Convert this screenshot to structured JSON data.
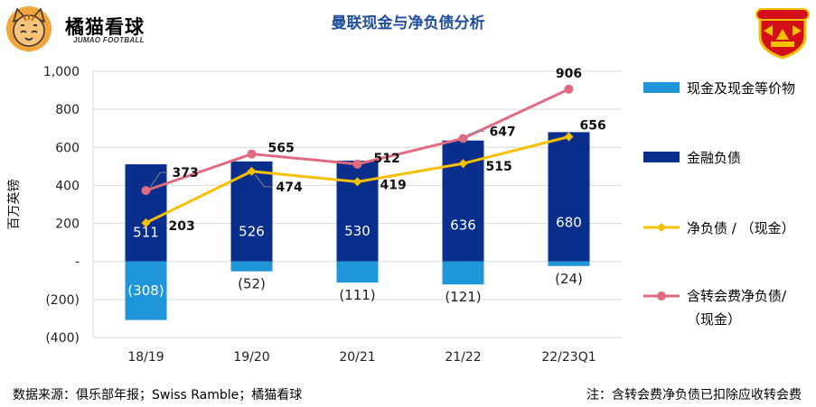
{
  "brand": {
    "name": "橘猫看球",
    "subtitle": "JUMAO FOOTBALL"
  },
  "title": "曼联现金与净负债分析",
  "footer": {
    "source": "数据来源：俱乐部年报；Swiss Ramble；橘猫看球",
    "note": "注：含转会费净负债已扣除应收转会费"
  },
  "colors": {
    "cash": "#1e96d7",
    "debt": "#0a2e8c",
    "net_debt": "#f5c000",
    "net_debt_incl": "#e06b80"
  },
  "chart_data": {
    "type": "bar",
    "categories": [
      "18/19",
      "19/20",
      "20/21",
      "21/22",
      "22/23Q1"
    ],
    "ylabel": "百万英镑",
    "ylim": [
      -400,
      1000
    ],
    "yticks": [
      {
        "v": 1000,
        "label": "1,000"
      },
      {
        "v": 800,
        "label": "800"
      },
      {
        "v": 600,
        "label": "600"
      },
      {
        "v": 400,
        "label": "400"
      },
      {
        "v": 200,
        "label": "200"
      },
      {
        "v": 0,
        "label": "-"
      },
      {
        "v": -200,
        "label": "(200)"
      },
      {
        "v": -400,
        "label": "(400)"
      }
    ],
    "grid": true,
    "legend_position": "right",
    "series": [
      {
        "name": "现金及现金等价物",
        "kind": "bar",
        "color": "#1e96d7",
        "values": [
          -308,
          -52,
          -111,
          -121,
          -24
        ],
        "labels": [
          "(308)",
          "(52)",
          "(111)",
          "(121)",
          "(24)"
        ]
      },
      {
        "name": "金融负债",
        "kind": "bar",
        "color": "#0a2e8c",
        "values": [
          511,
          526,
          530,
          636,
          680
        ],
        "labels": [
          "511",
          "526",
          "530",
          "636",
          "680"
        ]
      },
      {
        "name": "净负债 / （现金）",
        "kind": "line",
        "color": "#f5c000",
        "values": [
          203,
          474,
          419,
          515,
          656
        ],
        "labels": [
          "203",
          "474",
          "419",
          "515",
          "656"
        ]
      },
      {
        "name": "含转会费净负债/（现金）",
        "kind": "line",
        "color": "#e06b80",
        "values": [
          373,
          565,
          512,
          647,
          906
        ],
        "labels": [
          "373",
          "565",
          "512",
          "647",
          "906"
        ]
      }
    ]
  }
}
